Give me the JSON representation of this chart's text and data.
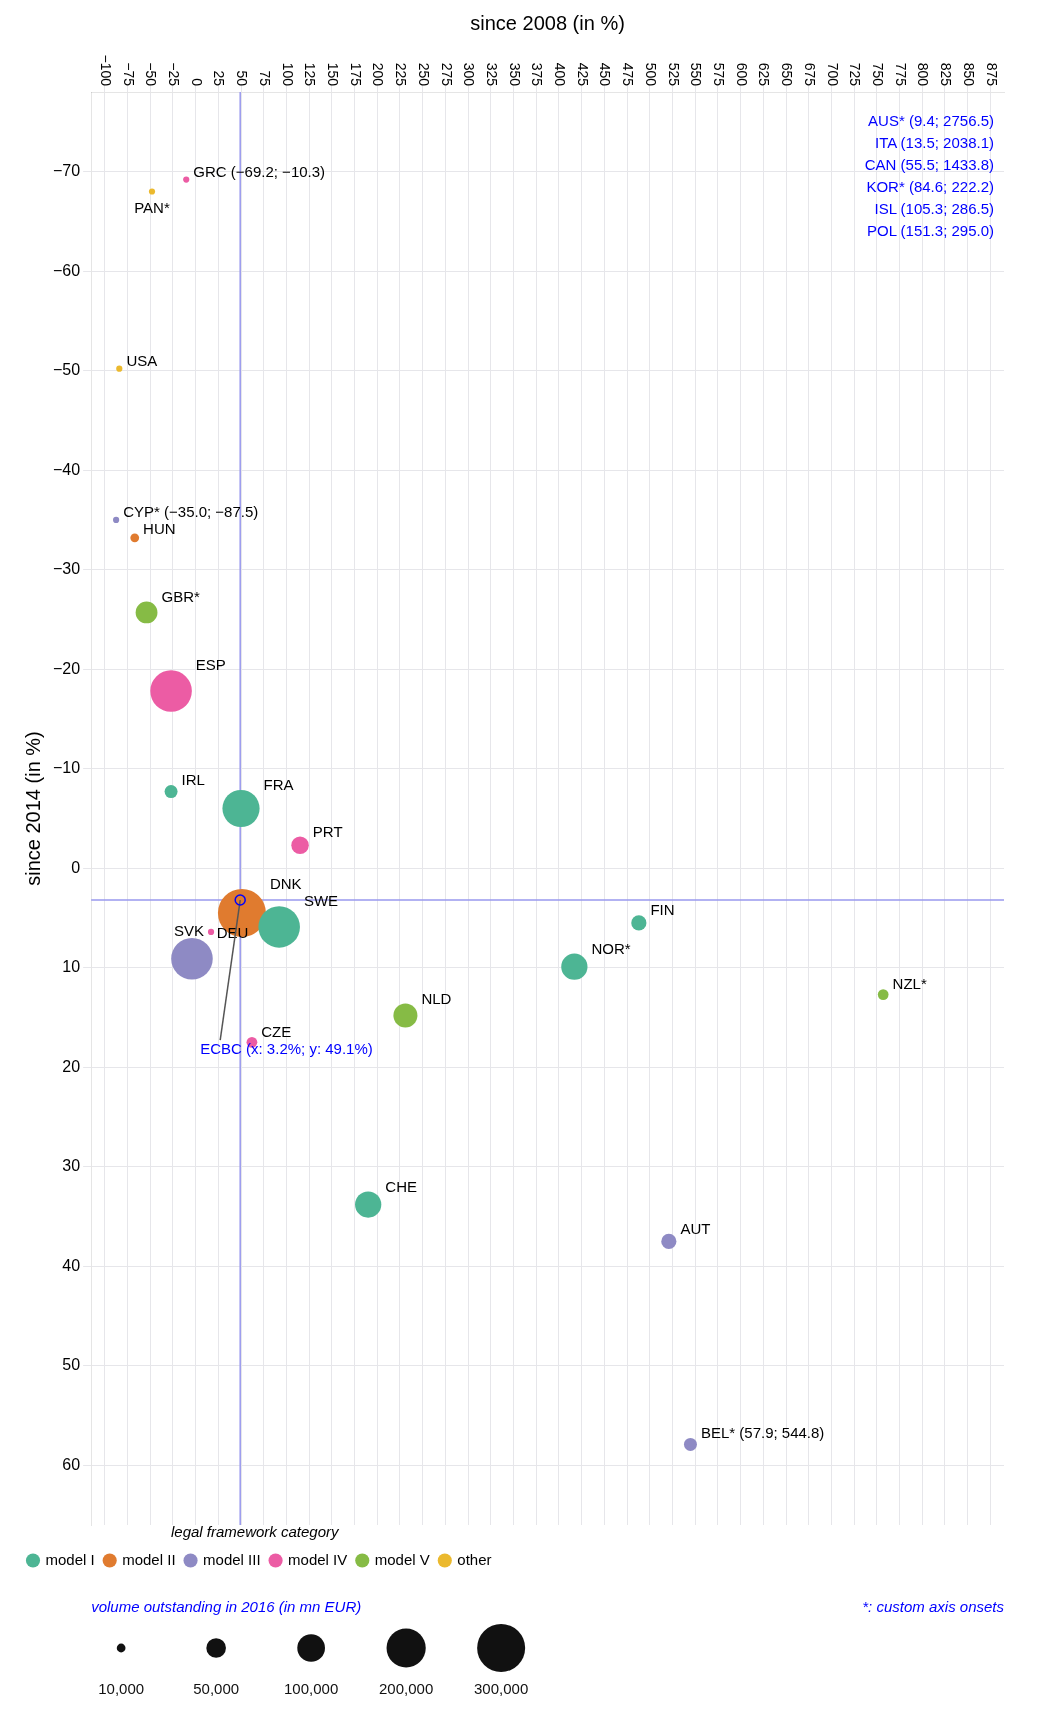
{
  "chart_data": {
    "type": "bubble",
    "xlabel": "since 2008 (in %)",
    "ylabel": "since 2014 (in %)",
    "legend_title": "legal framework category",
    "xlim": [
      -115,
      890
    ],
    "ylim": [
      66,
      -78
    ],
    "xticks": [
      {
        "value": -100,
        "label": "−100"
      },
      {
        "value": -75,
        "label": "−75"
      },
      {
        "value": -50,
        "label": "−50"
      },
      {
        "value": -25,
        "label": "−25"
      },
      0,
      25,
      50,
      75,
      100,
      125,
      150,
      175,
      200,
      225,
      250,
      275,
      300,
      325,
      350,
      375,
      400,
      425,
      450,
      475,
      500,
      525,
      550,
      575,
      600,
      625,
      650,
      675,
      700,
      725,
      750,
      775,
      800,
      825,
      850,
      875
    ],
    "yticks": [
      {
        "value": -70,
        "label": "−70"
      },
      {
        "value": -60,
        "label": "−60"
      },
      {
        "value": -50,
        "label": "−50"
      },
      {
        "value": -40,
        "label": "−40"
      },
      {
        "value": -30,
        "label": "−30"
      },
      {
        "value": -20,
        "label": "−20"
      },
      {
        "value": -10,
        "label": "−10"
      },
      0,
      10,
      20,
      30,
      40,
      50,
      60
    ],
    "grid": true,
    "legend": "bottom left",
    "size_legend": [
      {
        "value": 10000,
        "label": "10,000"
      },
      {
        "value": 50000,
        "label": "50,000"
      },
      {
        "value": 100000,
        "label": "100,000"
      },
      {
        "value": 200000,
        "label": "200,000"
      },
      {
        "value": 300000,
        "label": "300,000"
      }
    ],
    "series": [
      {
        "name": "model I",
        "color": "#4db594",
        "x": [
          -27,
          50,
          92,
          417,
          488,
          190
        ],
        "values": [
          -7.7,
          -6,
          5.9,
          9.9,
          5.5,
          33.8
        ],
        "sizes": [
          22000,
          180000,
          225000,
          90000,
          30000,
          90000
        ]
      },
      {
        "name": "model II",
        "color": "#e07b2f",
        "x": [
          -67,
          51
        ],
        "values": [
          -33.2,
          4.5
        ],
        "sizes": [
          10000,
          300000
        ]
      },
      {
        "name": "model III",
        "color": "#8e8ac4",
        "x": [
          -87.5,
          -4,
          521,
          544.8
        ],
        "values": [
          -35,
          9.1,
          37.5,
          57.9
        ],
        "sizes": [
          5000,
          225000,
          30000,
          22000
        ]
      },
      {
        "name": "model IV",
        "color": "#ec5ca4",
        "x": [
          -10.3,
          -27,
          115,
          17,
          62
        ],
        "values": [
          -69.2,
          -17.8,
          -2.3,
          6.4,
          17.5
        ],
        "sizes": [
          5000,
          225000,
          40000,
          5000,
          15000
        ]
      },
      {
        "name": "model V",
        "color": "#86bb45",
        "x": [
          -54,
          231,
          757
        ],
        "values": [
          -25.7,
          14.8,
          12.7
        ],
        "sizes": [
          62000,
          75000,
          15000
        ]
      },
      {
        "name": "other",
        "color": "#ebb92e",
        "x": [
          -48,
          -84
        ],
        "values": [
          -68,
          -50.2
        ],
        "sizes": [
          5000,
          5000
        ]
      }
    ],
    "ref_lines": [
      {
        "axis": "x",
        "value": 49.1,
        "color": "#9999ee"
      },
      {
        "axis": "y",
        "value": 3.2,
        "color": "#9999ee"
      }
    ],
    "annotations": [
      "*: custom axis onsets",
      "volume outstanding in 2016 (in mn EUR)",
      "AUS* (9.4; 2756.5)",
      "ITA (13.5; 2038.1)",
      "CAN (55.5; 1433.8)",
      "KOR* (84.6; 222.2)",
      "ISL (105.3; 286.5)",
      "POL (151.3; 295.0)",
      {
        "text": "IRL",
        "x": -27,
        "y": -7.7
      },
      {
        "text": "FRA",
        "x": 50,
        "y": -6
      },
      {
        "text": "SWE",
        "x": 92,
        "y": 5.9
      },
      {
        "text": "NOR*",
        "x": 417,
        "y": 9.9
      },
      {
        "text": "FIN",
        "x": 488,
        "y": 5.5
      },
      {
        "text": "CHE",
        "x": 190,
        "y": 33.8
      },
      {
        "text": "HUN",
        "x": -67,
        "y": -33.2
      },
      {
        "text": "DNK",
        "x": 51,
        "y": 4.5
      },
      {
        "text": "CYP* (−35.0; −87.5)",
        "x": -87.5,
        "y": -35
      },
      {
        "text": "DEU",
        "x": -4,
        "y": 9.1
      },
      {
        "text": "AUT",
        "x": 521,
        "y": 37.5
      },
      {
        "text": "BEL* (57.9; 544.8)",
        "x": 544.8,
        "y": 57.9
      },
      {
        "text": "GRC (−69.2; −10.3)",
        "x": -10.3,
        "y": -69.2
      },
      {
        "text": "ESP",
        "x": -27,
        "y": -17.8
      },
      {
        "text": "PRT",
        "x": 115,
        "y": -2.3
      },
      {
        "text": "SVK",
        "x": 17,
        "y": 6.4
      },
      {
        "text": "CZE",
        "x": 62,
        "y": 17.5
      },
      {
        "text": "GBR*",
        "x": -54,
        "y": -25.7
      },
      {
        "text": "NLD",
        "x": 231,
        "y": 14.8
      },
      {
        "text": "NZL*",
        "x": 757,
        "y": 12.7
      },
      {
        "text": "PAN*",
        "x": -48,
        "y": -68
      },
      {
        "text": "USA",
        "x": -84,
        "y": -50.2
      },
      {
        "text": "ECBC (x: 3.2%; y: 49.1%)",
        "x": 49.1,
        "y": 3.2
      }
    ]
  }
}
